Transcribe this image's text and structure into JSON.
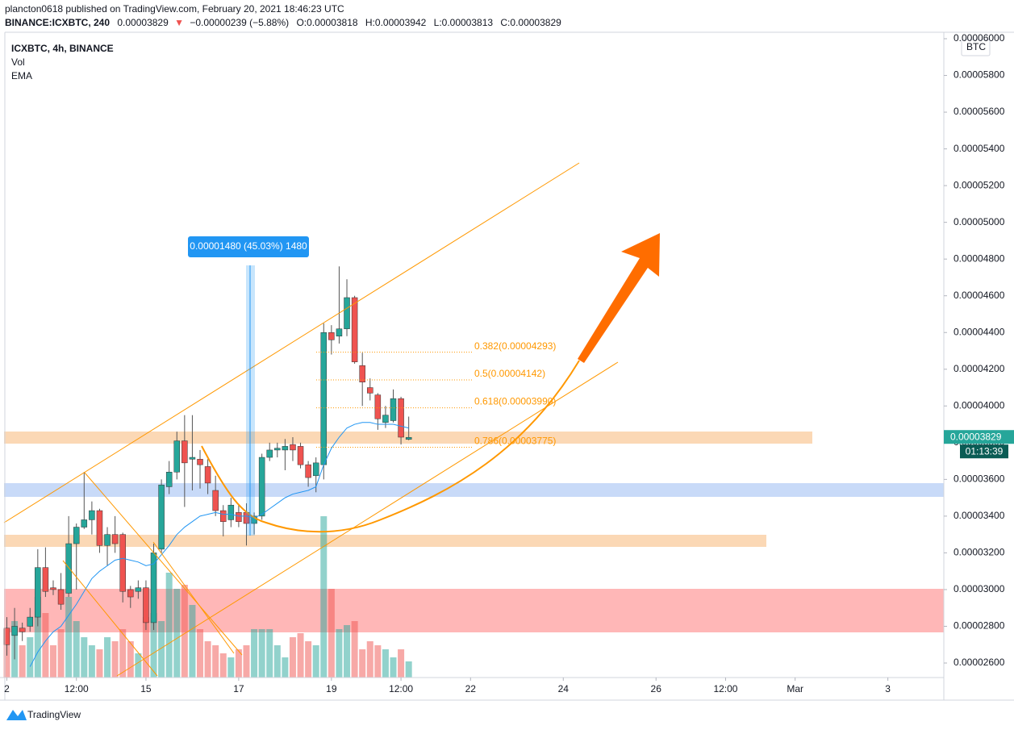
{
  "header": {
    "published": "plancton0618 published on TradingView.com, February 20, 2021 18:46:23 UTC",
    "symbol": "BINANCE:ICXBTC, 240",
    "last": "0.00003829",
    "change": "−0.00000239 (−5.88%)",
    "open": "O:0.00003818",
    "high": "H:0.00003942",
    "low": "L:0.00003813",
    "close": "C:0.00003829"
  },
  "footer": "TradingView",
  "chart_data": {
    "type": "candlestick",
    "legend": [
      "ICXBTC, 4h, BINANCE",
      "Vol",
      "EMA"
    ],
    "y_unit": "BTC",
    "price_label": "0.00003829",
    "timer": "01:13:39",
    "measure_label": "0.00001480 (45.03%) 1480",
    "up_color": "#26a69a",
    "down_color": "#ef5350",
    "ema_color": "#2196f3",
    "xlim": [
      -0.887,
      121.24
    ],
    "xticks": [
      {
        "value": 0,
        "label": "2"
      },
      {
        "value": 9,
        "label": "12:00"
      },
      {
        "value": 18,
        "label": "15"
      },
      {
        "value": 30,
        "label": "17"
      },
      {
        "value": 42,
        "label": "19"
      },
      {
        "value": 51,
        "label": "12:00"
      },
      {
        "value": 60,
        "label": "22"
      },
      {
        "value": 72,
        "label": "24"
      },
      {
        "value": 84,
        "label": "26"
      },
      {
        "value": 93,
        "label": "12:00"
      },
      {
        "value": 102,
        "label": "Mar"
      },
      {
        "value": 114,
        "label": "3"
      }
    ],
    "ylim": [
      2.52093e-05,
      6.03514e-05
    ],
    "yticks": [
      {
        "value": 2.6e-05,
        "label": "0.00002600"
      },
      {
        "value": 2.8e-05,
        "label": "0.00002800"
      },
      {
        "value": 3e-05,
        "label": "0.00003000"
      },
      {
        "value": 3.2e-05,
        "label": "0.00003200"
      },
      {
        "value": 3.4e-05,
        "label": "0.00003400"
      },
      {
        "value": 3.6e-05,
        "label": "0.00003600"
      },
      {
        "value": 3.8e-05,
        "label": "0.00003800"
      },
      {
        "value": 4e-05,
        "label": "0.00004000"
      },
      {
        "value": 4.2e-05,
        "label": "0.00004200"
      },
      {
        "value": 4.4e-05,
        "label": "0.00004400"
      },
      {
        "value": 4.6e-05,
        "label": "0.00004600"
      },
      {
        "value": 4.8e-05,
        "label": "0.00004800"
      },
      {
        "value": 5e-05,
        "label": "0.00005000"
      },
      {
        "value": 5.2e-05,
        "label": "0.00005200"
      },
      {
        "value": 5.4e-05,
        "label": "0.00005400"
      },
      {
        "value": 5.6e-05,
        "label": "0.00005600"
      },
      {
        "value": 5.8e-05,
        "label": "0.00005800"
      },
      {
        "value": 6e-05,
        "label": "0.00006000"
      }
    ],
    "fib": [
      {
        "label": "0.382(0.00004293)",
        "value": 4.293e-05
      },
      {
        "label": "0.5(0.00004142)",
        "value": 4.142e-05
      },
      {
        "label": "0.618(0.00003990)",
        "value": 3.99e-05
      },
      {
        "label": "0.786(0.00003775)",
        "value": 3.775e-05
      }
    ],
    "candles": [
      {
        "o": 2.79e-05,
        "h": 2.85e-05,
        "l": 2.64e-05,
        "c": 2.7e-05
      },
      {
        "o": 2.75e-05,
        "h": 2.9e-05,
        "l": 2.62e-05,
        "c": 2.8e-05
      },
      {
        "o": 2.79e-05,
        "h": 2.82e-05,
        "l": 2.72e-05,
        "c": 2.77e-05
      },
      {
        "o": 2.8e-05,
        "h": 2.9e-05,
        "l": 2.77e-05,
        "c": 2.85e-05
      },
      {
        "o": 2.85e-05,
        "h": 3.22e-05,
        "l": 2.8e-05,
        "c": 3.12e-05
      },
      {
        "o": 3.12e-05,
        "h": 3.23e-05,
        "l": 2.96e-05,
        "c": 2.99e-05
      },
      {
        "o": 3.01e-05,
        "h": 3.05e-05,
        "l": 2.97e-05,
        "c": 3e-05
      },
      {
        "o": 3e-05,
        "h": 3.09e-05,
        "l": 2.89e-05,
        "c": 2.92e-05
      },
      {
        "o": 2.98e-05,
        "h": 3.4e-05,
        "l": 2.96e-05,
        "c": 3.25e-05
      },
      {
        "o": 3.25e-05,
        "h": 3.36e-05,
        "l": 3e-05,
        "c": 3.34e-05
      },
      {
        "o": 3.34e-05,
        "h": 3.64e-05,
        "l": 3.33e-05,
        "c": 3.38e-05
      },
      {
        "o": 3.38e-05,
        "h": 3.48e-05,
        "l": 3.3e-05,
        "c": 3.43e-05
      },
      {
        "o": 3.43e-05,
        "h": 3.44e-05,
        "l": 3.2e-05,
        "c": 3.24e-05
      },
      {
        "o": 3.24e-05,
        "h": 3.34e-05,
        "l": 3.13e-05,
        "c": 3.3e-05
      },
      {
        "o": 3.3e-05,
        "h": 3.4e-05,
        "l": 3.2e-05,
        "c": 3.25e-05
      },
      {
        "o": 3.3e-05,
        "h": 3.31e-05,
        "l": 2.93e-05,
        "c": 2.99e-05
      },
      {
        "o": 3e-05,
        "h": 3.02e-05,
        "l": 2.9e-05,
        "c": 2.96e-05
      },
      {
        "o": 2.99e-05,
        "h": 3.05e-05,
        "l": 2.95e-05,
        "c": 3.01e-05
      },
      {
        "o": 3.01e-05,
        "h": 3.05e-05,
        "l": 2.78e-05,
        "c": 2.82e-05
      },
      {
        "o": 2.82e-05,
        "h": 3.25e-05,
        "l": 2.78e-05,
        "c": 3.2e-05
      },
      {
        "o": 3.22e-05,
        "h": 3.6e-05,
        "l": 3.2e-05,
        "c": 3.57e-05
      },
      {
        "o": 3.56e-05,
        "h": 3.7e-05,
        "l": 3.52e-05,
        "c": 3.64e-05
      },
      {
        "o": 3.64e-05,
        "h": 3.86e-05,
        "l": 3.6e-05,
        "c": 3.81e-05
      },
      {
        "o": 3.81e-05,
        "h": 3.95e-05,
        "l": 3.45e-05,
        "c": 3.69e-05
      },
      {
        "o": 3.71e-05,
        "h": 3.95e-05,
        "l": 3.54e-05,
        "c": 3.72e-05
      },
      {
        "o": 3.71e-05,
        "h": 3.76e-05,
        "l": 3.55e-05,
        "c": 3.68e-05
      },
      {
        "o": 3.67e-05,
        "h": 3.71e-05,
        "l": 3.52e-05,
        "c": 3.58e-05
      },
      {
        "o": 3.54e-05,
        "h": 3.62e-05,
        "l": 3.4e-05,
        "c": 3.43e-05
      },
      {
        "o": 3.43e-05,
        "h": 3.46e-05,
        "l": 3.29e-05,
        "c": 3.37e-05
      },
      {
        "o": 3.38e-05,
        "h": 3.5e-05,
        "l": 3.34e-05,
        "c": 3.46e-05
      },
      {
        "o": 3.42e-05,
        "h": 3.46e-05,
        "l": 3.34e-05,
        "c": 3.37e-05
      },
      {
        "o": 3.42e-05,
        "h": 3.47e-05,
        "l": 3.24e-05,
        "c": 3.36e-05
      },
      {
        "o": 3.36e-05,
        "h": 3.42e-05,
        "l": 3.3e-05,
        "c": 3.4e-05
      },
      {
        "o": 3.4e-05,
        "h": 3.74e-05,
        "l": 3.38e-05,
        "c": 3.72e-05
      },
      {
        "o": 3.72e-05,
        "h": 3.8e-05,
        "l": 3.7e-05,
        "c": 3.76e-05
      },
      {
        "o": 3.76e-05,
        "h": 3.8e-05,
        "l": 3.72e-05,
        "c": 3.77e-05
      },
      {
        "o": 3.76e-05,
        "h": 3.82e-05,
        "l": 3.65e-05,
        "c": 3.78e-05
      },
      {
        "o": 3.79e-05,
        "h": 3.83e-05,
        "l": 3.7e-05,
        "c": 3.76e-05
      },
      {
        "o": 3.78e-05,
        "h": 3.8e-05,
        "l": 3.66e-05,
        "c": 3.68e-05
      },
      {
        "o": 3.68e-05,
        "h": 3.7e-05,
        "l": 3.56e-05,
        "c": 3.61e-05
      },
      {
        "o": 3.62e-05,
        "h": 3.72e-05,
        "l": 3.53e-05,
        "c": 3.69e-05
      },
      {
        "o": 3.68e-05,
        "h": 4.45e-05,
        "l": 3.6e-05,
        "c": 4.4e-05
      },
      {
        "o": 4.4e-05,
        "h": 4.44e-05,
        "l": 4.28e-05,
        "c": 4.36e-05
      },
      {
        "o": 4.38e-05,
        "h": 4.76e-05,
        "l": 4.34e-05,
        "c": 4.42e-05
      },
      {
        "o": 4.42e-05,
        "h": 4.69e-05,
        "l": 4.38e-05,
        "c": 4.59e-05
      },
      {
        "o": 4.59e-05,
        "h": 4.6e-05,
        "l": 4.23e-05,
        "c": 4.24e-05
      },
      {
        "o": 4.22e-05,
        "h": 4.29e-05,
        "l": 4e-05,
        "c": 4.13e-05
      },
      {
        "o": 4.1e-05,
        "h": 4.15e-05,
        "l": 4.03e-05,
        "c": 4.07e-05
      },
      {
        "o": 4.06e-05,
        "h": 4.07e-05,
        "l": 3.87e-05,
        "c": 3.93e-05
      },
      {
        "o": 3.91e-05,
        "h": 4e-05,
        "l": 3.88e-05,
        "c": 3.95e-05
      },
      {
        "o": 3.92e-05,
        "h": 4.09e-05,
        "l": 3.91e-05,
        "c": 4.04e-05
      },
      {
        "o": 4.04e-05,
        "h": 4.05e-05,
        "l": 3.79e-05,
        "c": 3.83e-05
      },
      {
        "o": 3.818e-05,
        "h": 3.942e-05,
        "l": 3.813e-05,
        "c": 3.829e-05
      }
    ],
    "volume": [
      60,
      70,
      40,
      50,
      100,
      80,
      40,
      60,
      100,
      70,
      50,
      40,
      35,
      50,
      45,
      60,
      45,
      30,
      75,
      80,
      70,
      130,
      110,
      115,
      90,
      60,
      45,
      40,
      30,
      25,
      35,
      40,
      60,
      60,
      60,
      40,
      25,
      50,
      55,
      45,
      40,
      200,
      110,
      60,
      65,
      70,
      35,
      45,
      40,
      35,
      25,
      35,
      20
    ],
    "ema": [
      null,
      null,
      null,
      2.58e-05,
      2.66e-05,
      2.72e-05,
      2.77e-05,
      2.8e-05,
      2.86e-05,
      2.92e-05,
      2.99e-05,
      3.06e-05,
      3.1e-05,
      3.13e-05,
      3.16e-05,
      3.17e-05,
      3.16e-05,
      3.15e-05,
      3.13e-05,
      3.14e-05,
      3.19e-05,
      3.24e-05,
      3.3e-05,
      3.34e-05,
      3.37e-05,
      3.4e-05,
      3.41e-05,
      3.42e-05,
      3.41e-05,
      3.41e-05,
      3.4e-05,
      3.4e-05,
      3.39e-05,
      3.41e-05,
      3.44e-05,
      3.47e-05,
      3.5e-05,
      3.52e-05,
      3.53e-05,
      3.54e-05,
      3.56e-05,
      3.68e-05,
      3.77e-05,
      3.83e-05,
      3.88e-05,
      3.9e-05,
      3.91e-05,
      3.91e-05,
      3.9e-05,
      3.9e-05,
      3.9e-05,
      3.89e-05,
      3.88e-05
    ]
  }
}
